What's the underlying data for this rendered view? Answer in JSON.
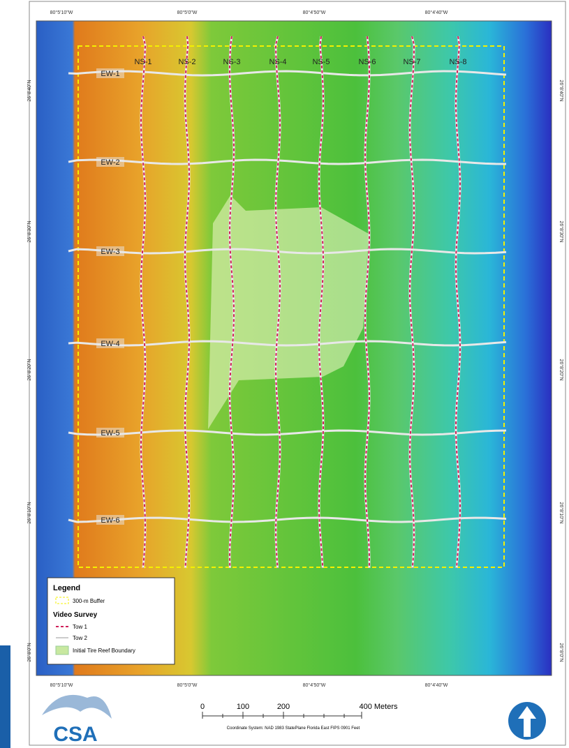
{
  "map": {
    "longitude_labels": [
      "80°5'10\"W",
      "80°5'0\"W",
      "80°4'50\"W",
      "80°4'40\"W"
    ],
    "latitude_labels": [
      "26°8'40\"N",
      "26°8'30\"N",
      "26°8'20\"N",
      "26°8'10\"N",
      "26°8'0\"N"
    ],
    "ns_lines": [
      "NS-1",
      "NS-2",
      "NS-3",
      "NS-4",
      "NS-5",
      "NS-6",
      "NS-7",
      "NS-8"
    ],
    "ew_lines": [
      "EW-1",
      "EW-2",
      "EW-3",
      "EW-4",
      "EW-5",
      "EW-6"
    ]
  },
  "legend": {
    "title": "Legend",
    "buffer": "300-m Buffer",
    "survey_heading": "Video Survey",
    "tow1": "Tow 1",
    "tow2": "Tow 2",
    "reef": "Initial Tire Reef Boundary"
  },
  "scale_bar": {
    "labels": [
      "0",
      "100",
      "200",
      "400 Meters"
    ],
    "coordinate_system": "Coordinate System: NAD 1983 StatePlane Florida East FIPS 0901 Feet"
  },
  "logo": "CSA"
}
